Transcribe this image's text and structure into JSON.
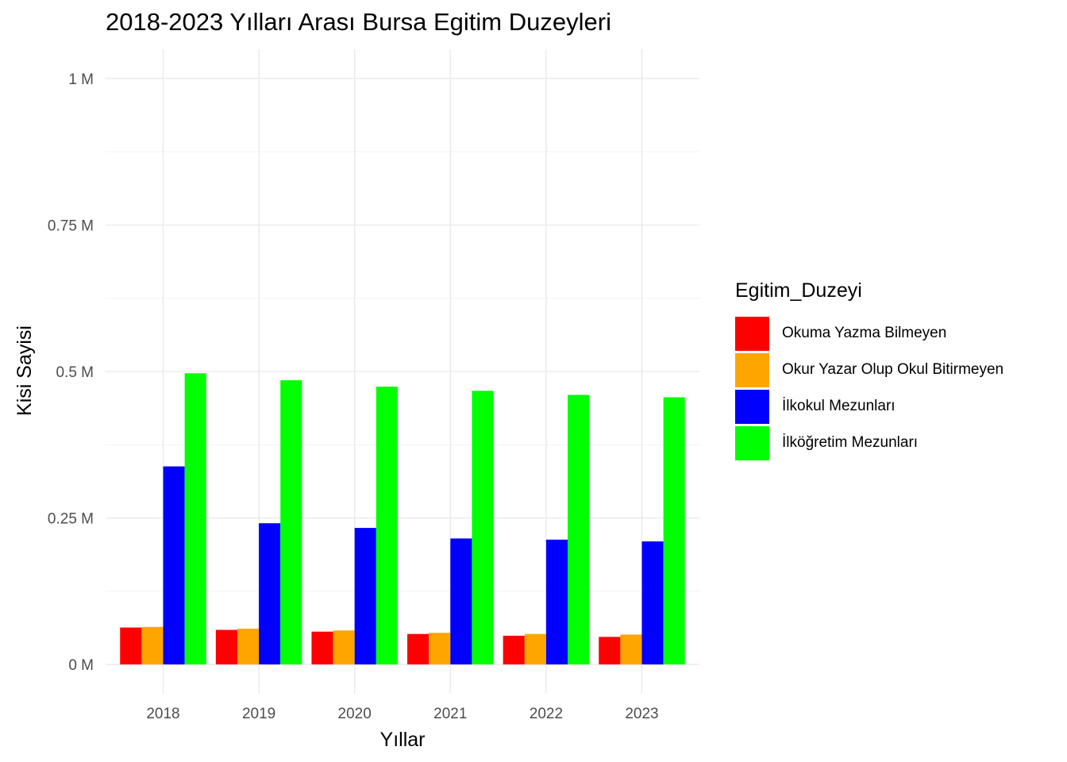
{
  "chart_data": {
    "type": "bar",
    "title": "2018-2023 Yılları Arası Bursa Egitim Duzeyleri",
    "xlabel": "Yıllar",
    "ylabel": "Kisi Sayisi",
    "categories": [
      "2018",
      "2019",
      "2020",
      "2021",
      "2022",
      "2023"
    ],
    "ylim": [
      -50000,
      1050000
    ],
    "yticks": [
      0,
      250000,
      500000,
      750000,
      1000000
    ],
    "ytick_labels": [
      "0 M",
      "0.25 M",
      "0.5 M",
      "0.75 M",
      "1 M"
    ],
    "grid": true,
    "legend_title": "Egitim_Duzeyi",
    "legend_position": "right",
    "series": [
      {
        "name": "Okuma Yazma Bilmeyen",
        "color": "#FF0000",
        "values": [
          63000,
          59000,
          56000,
          52000,
          49000,
          47000
        ]
      },
      {
        "name": "Okur Yazar Olup Okul Bitirmeyen",
        "color": "#FFA500",
        "values": [
          64000,
          61000,
          58000,
          54000,
          52000,
          51000
        ]
      },
      {
        "name": "İlkokul Mezunları",
        "color": "#0000FF",
        "values": [
          338000,
          241000,
          233000,
          215000,
          213000,
          210000
        ]
      },
      {
        "name": "İlköğretim Mezunları",
        "color": "#00FF00",
        "values": [
          497000,
          485000,
          474000,
          467000,
          460000,
          456000
        ]
      }
    ]
  }
}
